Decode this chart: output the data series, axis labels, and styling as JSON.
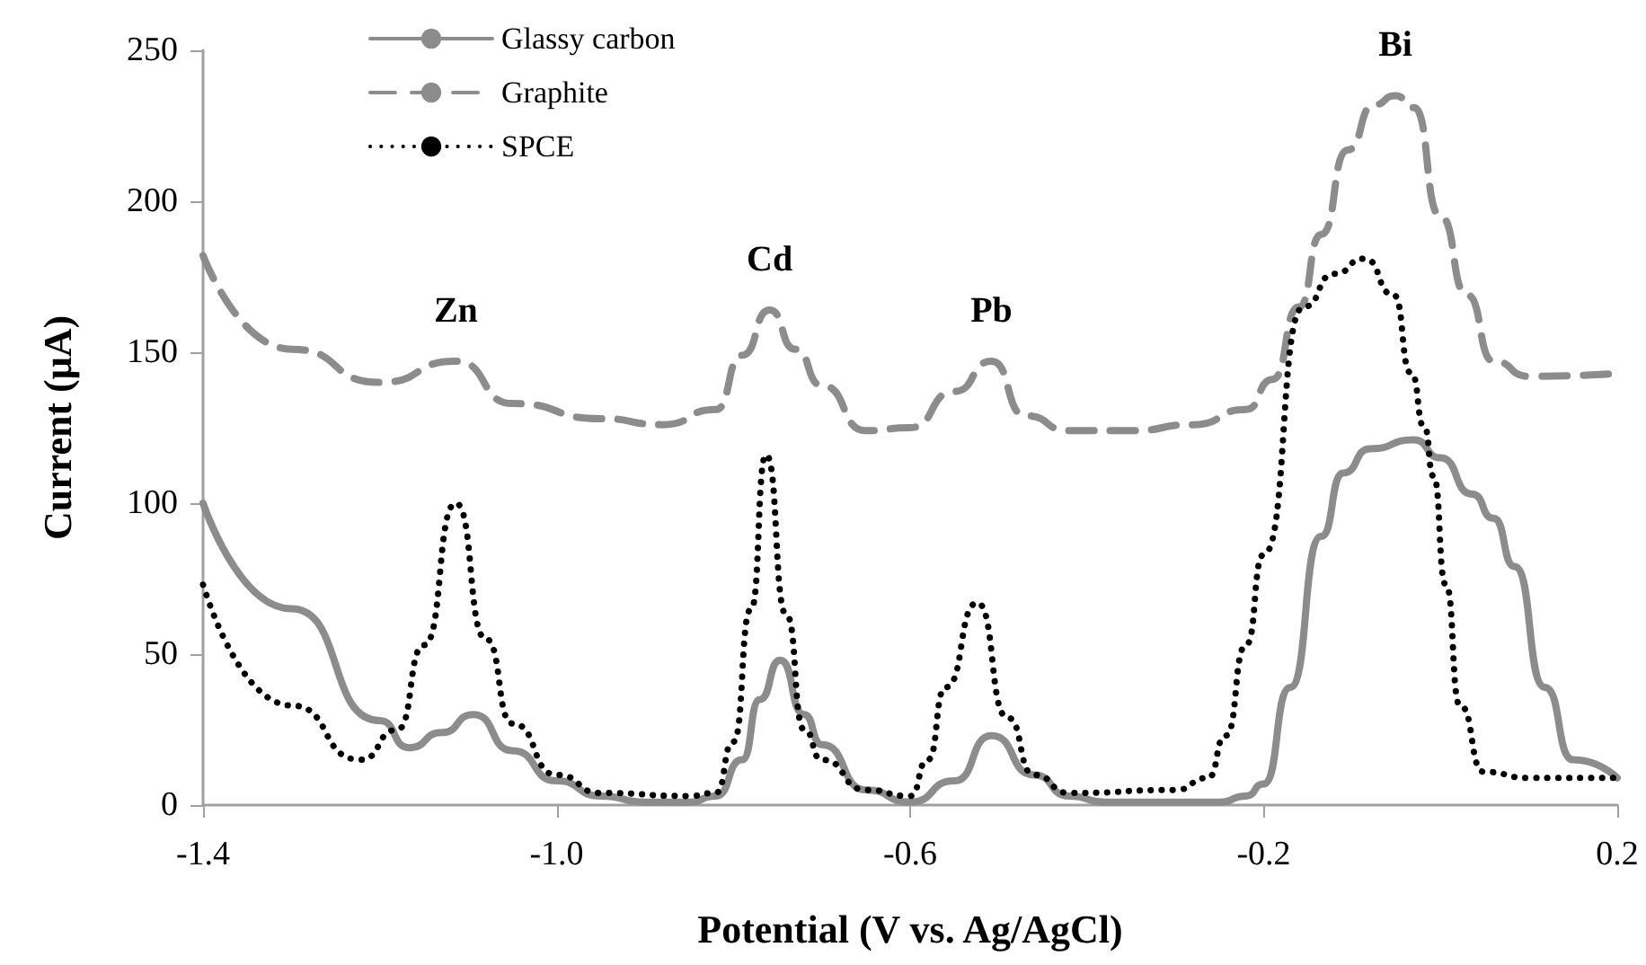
{
  "chart_data": {
    "type": "line",
    "xlabel": "Potential (V vs. Ag/AgCl)",
    "ylabel": "Current (μA)",
    "xlim": [
      -1.4,
      0.2
    ],
    "xticks": [
      -1.4,
      {
        "value": -1.0,
        "label": "-1.0"
      },
      -0.6,
      -0.2,
      0.2
    ],
    "ylim": [
      0,
      250
    ],
    "yticks": [
      0,
      50,
      100,
      150,
      200,
      250
    ],
    "grid": false,
    "legend": "top left",
    "marker": "none",
    "annotations": [
      {
        "text": "Zn",
        "x": -1.114,
        "y": 147
      },
      {
        "text": "Cd",
        "x": -0.759,
        "y": 164
      },
      {
        "text": "Pb",
        "x": -0.508,
        "y": 147
      },
      {
        "text": "Bi",
        "x": -0.051,
        "y": 235
      }
    ],
    "series": [
      {
        "name": "Glassy carbon",
        "color": "#8c8c8c",
        "line_style": "solid",
        "x": [
          -1.4,
          -1.3,
          -1.2,
          -1.167,
          -1.13,
          -1.094,
          -1.05,
          -1.0,
          -0.95,
          -0.9,
          -0.85,
          -0.82,
          -0.79,
          -0.77,
          -0.747,
          -0.72,
          -0.7,
          -0.65,
          -0.6,
          -0.55,
          -0.508,
          -0.46,
          -0.42,
          -0.38,
          -0.3,
          -0.25,
          -0.22,
          -0.2,
          -0.17,
          -0.135,
          -0.11,
          -0.08,
          -0.03,
          0.0,
          0.036,
          0.06,
          0.084,
          0.118,
          0.15,
          0.2
        ],
        "values": [
          100,
          65,
          28,
          19,
          24,
          30,
          18,
          8,
          3,
          1,
          1,
          3,
          15,
          35,
          48,
          30,
          20,
          5,
          1,
          8,
          23,
          10,
          3,
          1,
          1,
          1,
          3,
          7,
          39,
          89,
          110,
          118,
          121,
          115,
          103,
          95,
          79,
          39,
          15,
          9
        ]
      },
      {
        "name": "Graphite",
        "color": "#8c8c8c",
        "line_style": "dashed",
        "x": [
          -1.4,
          -1.3,
          -1.2,
          -1.114,
          -1.05,
          -0.95,
          -0.88,
          -0.82,
          -0.79,
          -0.759,
          -0.73,
          -0.7,
          -0.65,
          -0.6,
          -0.55,
          -0.508,
          -0.47,
          -0.42,
          -0.35,
          -0.28,
          -0.22,
          -0.19,
          -0.16,
          -0.135,
          -0.105,
          -0.075,
          -0.051,
          -0.03,
          0.0,
          0.03,
          0.06,
          0.1,
          0.2
        ],
        "values": [
          182,
          151,
          140,
          147,
          133,
          128,
          126,
          131,
          149,
          164,
          151,
          139,
          124,
          125,
          137,
          147,
          129,
          124,
          124,
          126,
          131,
          141,
          165,
          189,
          217,
          232,
          235,
          231,
          195,
          169,
          147,
          142,
          143
        ]
      },
      {
        "name": "SPCE",
        "color": "#000000",
        "line_style": "dotted",
        "x": [
          -1.4,
          -1.3,
          -1.222,
          -1.18,
          -1.15,
          -1.114,
          -1.08,
          -1.05,
          -1.0,
          -0.95,
          -0.85,
          -0.82,
          -0.8,
          -0.78,
          -0.763,
          -0.74,
          -0.72,
          -0.7,
          -0.65,
          -0.6,
          -0.58,
          -0.56,
          -0.524,
          -0.49,
          -0.46,
          -0.42,
          -0.3,
          -0.263,
          -0.243,
          -0.22,
          -0.2,
          -0.155,
          -0.12,
          -0.086,
          -0.053,
          -0.033,
          -0.018,
          -0.008,
          0.006,
          0.022,
          0.049,
          0.1,
          0.2
        ],
        "values": [
          73,
          33,
          15,
          25,
          53,
          100,
          55,
          27,
          10,
          4,
          3,
          4,
          21,
          65,
          116,
          63,
          25,
          15,
          5,
          3,
          15,
          39,
          67,
          29,
          10,
          4,
          5,
          9,
          23,
          53,
          83,
          165,
          176,
          181,
          169,
          143,
          125,
          109,
          73,
          33,
          11,
          9,
          9
        ]
      }
    ]
  }
}
